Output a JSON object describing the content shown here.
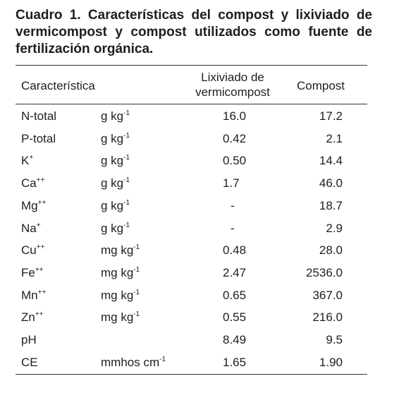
{
  "title": "Cuadro 1. Características del compost y lixiviado de vermicompost y compost utilizados como fuente de fertilización orgánica.",
  "table": {
    "header": {
      "characteristic": "Característica",
      "lixiviado": [
        "Lixiviado de",
        "vermicompost"
      ],
      "compost": "Compost"
    },
    "rows": [
      {
        "name": "N-total",
        "unit": "g kg",
        "unit_sup": "-1",
        "lixiviado": "16.0",
        "compost": "17.2"
      },
      {
        "name": "P-total",
        "unit": "g kg",
        "unit_sup": "-1",
        "lixiviado": "0.42",
        "compost": "2.1"
      },
      {
        "name": "K",
        "name_sup": "+",
        "unit": "g kg",
        "unit_sup": "-1",
        "lixiviado": "0.50",
        "compost": "14.4"
      },
      {
        "name": "Ca",
        "name_sup": "++",
        "unit": "g kg",
        "unit_sup": "-1",
        "lixiviado": "1.7",
        "compost": "46.0"
      },
      {
        "name": "Mg",
        "name_sup": "++",
        "unit": "g kg",
        "unit_sup": "-1",
        "lixiviado": "-",
        "compost": "18.7"
      },
      {
        "name": "Na",
        "name_sup": "+",
        "unit": "g kg",
        "unit_sup": "-1",
        "lixiviado": "-",
        "compost": "2.9"
      },
      {
        "name": "Cu",
        "name_sup": "++",
        "unit": "mg kg",
        "unit_sup": "-1",
        "lixiviado": "0.48",
        "compost": "28.0"
      },
      {
        "name": "Fe",
        "name_sup": "++",
        "unit": "mg kg",
        "unit_sup": "-1",
        "lixiviado": "2.47",
        "compost": "2536.0"
      },
      {
        "name": "Mn",
        "name_sup": "++",
        "unit": "mg kg",
        "unit_sup": "-1",
        "lixiviado": "0.65",
        "compost": "367.0"
      },
      {
        "name": "Zn",
        "name_sup": "++",
        "unit": "mg kg",
        "unit_sup": "-1",
        "lixiviado": "0.55",
        "compost": "216.0"
      },
      {
        "name": "pH",
        "lixiviado": "8.49",
        "compost": "9.5"
      },
      {
        "name": "CE",
        "unit": "mmhos cm",
        "unit_sup": "-1",
        "lixiviado": "1.65",
        "compost": "1.90"
      }
    ]
  }
}
